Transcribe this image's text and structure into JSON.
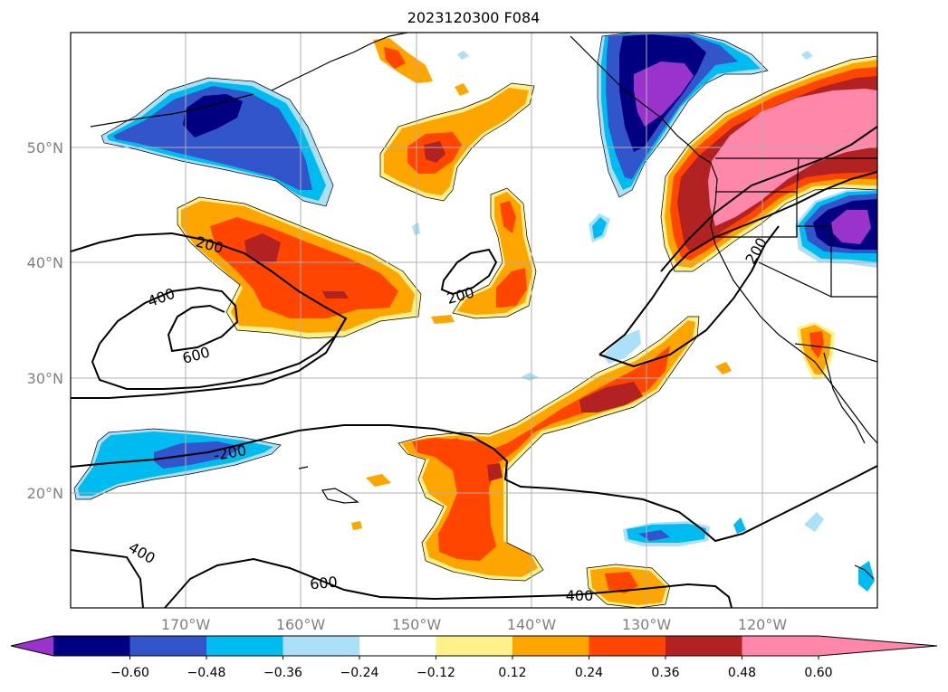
{
  "title": "2023120300 F084",
  "map": {
    "latitude_labels": [
      "50°N",
      "40°N",
      "30°N",
      "20°N"
    ],
    "longitude_labels": [
      "170°W",
      "160°W",
      "150°W",
      "140°W",
      "130°W",
      "120°W"
    ]
  },
  "contour_labels": {
    "c200_west": "200",
    "c400_west": "400",
    "c600_west": "600",
    "c200_mid": "200",
    "c200_east": "200",
    "cneg200": "-200",
    "c400_south": "400",
    "c600_south": "600",
    "c400_se": "400"
  },
  "colorbar": {
    "tick_labels": [
      "−0.60",
      "−0.48",
      "−0.36",
      "−0.24",
      "−0.12",
      "0.12",
      "0.24",
      "0.36",
      "0.48",
      "0.60"
    ],
    "colors": [
      "#9933cc",
      "#000080",
      "#3355cc",
      "#00bbf0",
      "#aae0f8",
      "#ffffff",
      "#fff08a",
      "#ffa500",
      "#ff4500",
      "#b22222",
      "#ff88aa"
    ]
  },
  "colors": {
    "pink": "#ff88aa",
    "darkred": "#b22222",
    "redorange": "#ff4500",
    "orange": "#ffa500",
    "yellow": "#fff08a",
    "lightblue": "#aae0f8",
    "skyblue": "#00bbf0",
    "royal": "#3355cc",
    "navy": "#000080",
    "purple": "#9933cc"
  }
}
